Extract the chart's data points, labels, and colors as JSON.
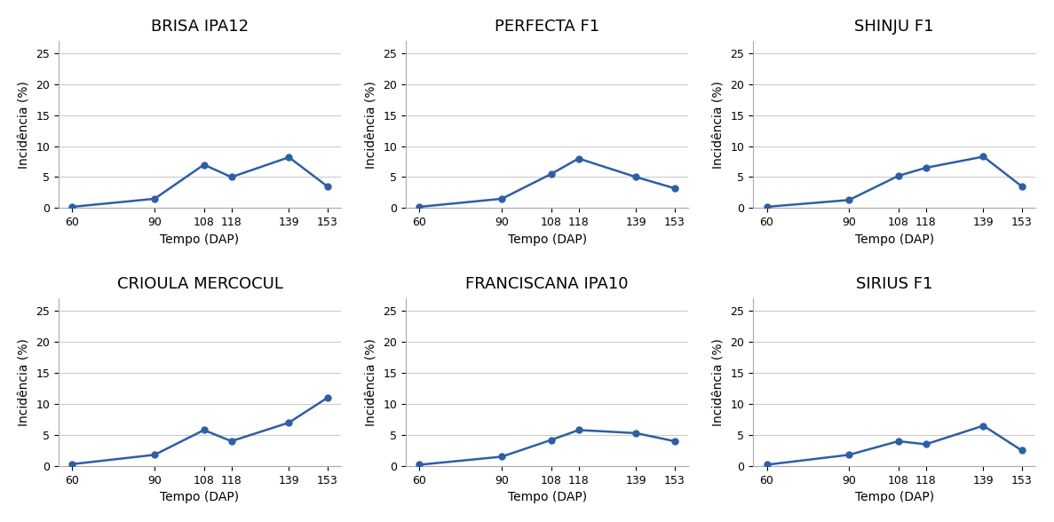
{
  "x": [
    60,
    90,
    108,
    118,
    139,
    153
  ],
  "subplots": [
    {
      "title": "BRISA IPA12",
      "y": [
        0.2,
        1.5,
        7.0,
        5.0,
        8.2,
        3.5
      ]
    },
    {
      "title": "PERFECTA F1",
      "y": [
        0.2,
        1.5,
        5.5,
        8.0,
        5.0,
        3.2
      ]
    },
    {
      "title": "SHINJU F1",
      "y": [
        0.2,
        1.3,
        5.2,
        6.5,
        8.3,
        3.5
      ]
    },
    {
      "title": "CRIOULA MERCOCUL",
      "y": [
        0.3,
        1.8,
        5.8,
        4.0,
        7.0,
        11.0
      ]
    },
    {
      "title": "FRANCISCANA IPA10",
      "y": [
        0.2,
        1.5,
        4.2,
        5.8,
        5.3,
        4.0
      ]
    },
    {
      "title": "SIRIUS F1",
      "y": [
        0.2,
        1.8,
        4.0,
        3.5,
        6.5,
        2.5
      ]
    }
  ],
  "ylabel": "Incidência (%)",
  "xlabel": "Tempo (DAP)",
  "ylim": [
    0,
    27
  ],
  "yticks": [
    0,
    5,
    10,
    15,
    20,
    25
  ],
  "line_color": "#2e5fa3",
  "marker": "o",
  "marker_size": 5,
  "line_width": 1.8,
  "title_fontsize": 13,
  "axis_label_fontsize": 10,
  "tick_fontsize": 9,
  "background_color": "#ffffff",
  "grid_color": "#cccccc"
}
